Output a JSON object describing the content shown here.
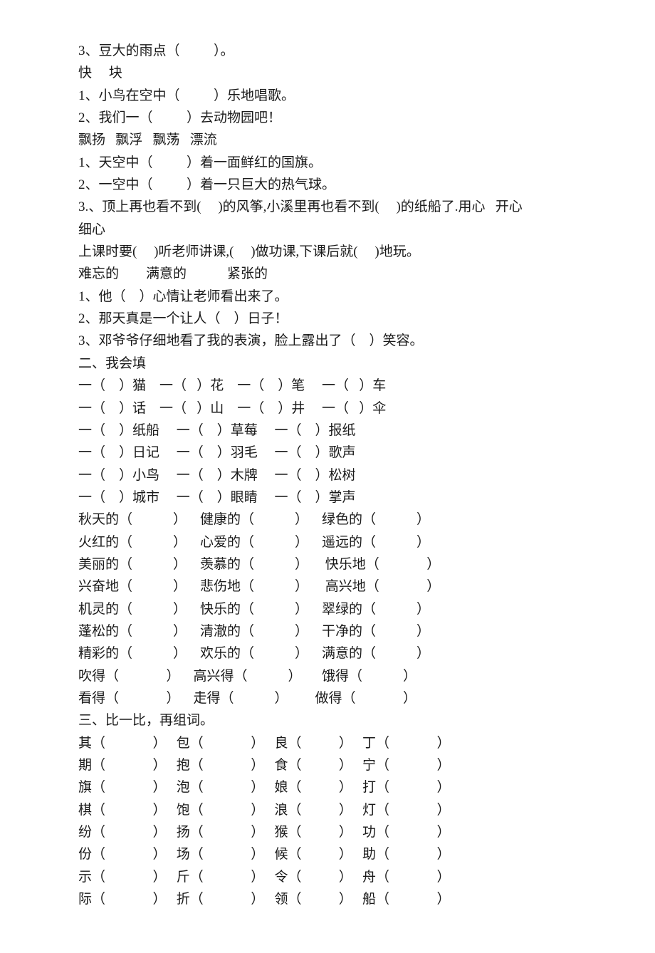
{
  "lines": [
    "3、豆大的雨点（          ）。",
    "快     块",
    "1、小鸟在空中（          ）乐地唱歌。",
    "2、我们一（          ）去动物园吧！",
    "飘扬   飘浮   飘荡   漂流",
    "1、天空中（          ）着一面鲜红的国旗。",
    "2、一空中（          ）着一只巨大的热气球。",
    "3.、顶上再也看不到(     )的风筝,小溪里再也看不到(     )的纸船了.用心   开心",
    "细心",
    "上课时要(     )听老师讲课,(     )做功课,下课后就(     )地玩。",
    "难忘的        满意的            紧张的",
    "1、他（    ）心情让老师看出来了。",
    "2、那天真是一个让人（    ）日子！",
    "3、邓爷爷仔细地看了我的表演，脸上露出了（    ）笑容。",
    "二、我会填",
    "一（    ）猫    一（   ）花    一（    ）笔     一（   ）车",
    "一（    ）话    一（   ）山    一（    ）井     一（   ）伞",
    "一（    ）纸船     一（    ）草莓     一（    ）报纸",
    "一（    ）日记     一（    ）羽毛     一（    ）歌声",
    "一（    ）小鸟     一（    ）木牌     一（    ）松树",
    "一（    ）城市     一（    ）眼睛     一（    ）掌声",
    "",
    "秋天的（            ）    健康的（            ）    绿色的（            ）",
    "火红的（            ）    心爱的（            ）    遥远的（            ）",
    "美丽的（            ）    羡慕的（            ）     快乐地（              ）",
    "兴奋地（            ）    悲伤地（            ）     高兴地（              ）",
    "机灵的（            ）    快乐的（            ）    翠绿的（            ）",
    "蓬松的（            ）    清澈的（            ）    干净的（            ）",
    "精彩的（            ）    欢乐的（            ）    满意的（            ）",
    "吹得（              ）    高兴得（            ）      饿得（            ）",
    "看得（              ）    走得（            ）        做得（              ）",
    "",
    "三、比一比，再组词。",
    "其（              ）   包（              ）   良（           ）   丁（              ）",
    "期（              ）   抱（              ）   食（           ）   宁（              ）",
    "旗（              ）   泡（              ）   娘（           ）   打（              ）",
    "棋（              ）   饱（              ）   浪（           ）   灯（              ）",
    "",
    "纷（              ）   扬（              ）   猴（           ）   功（              ）",
    "份（              ）   场（              ）   候（           ）   助（              ）",
    "",
    "示（              ）   斤（              ）   令（           ）   舟（              ）",
    "际（              ）   折（              ）   领（           ）   船（              ）"
  ]
}
